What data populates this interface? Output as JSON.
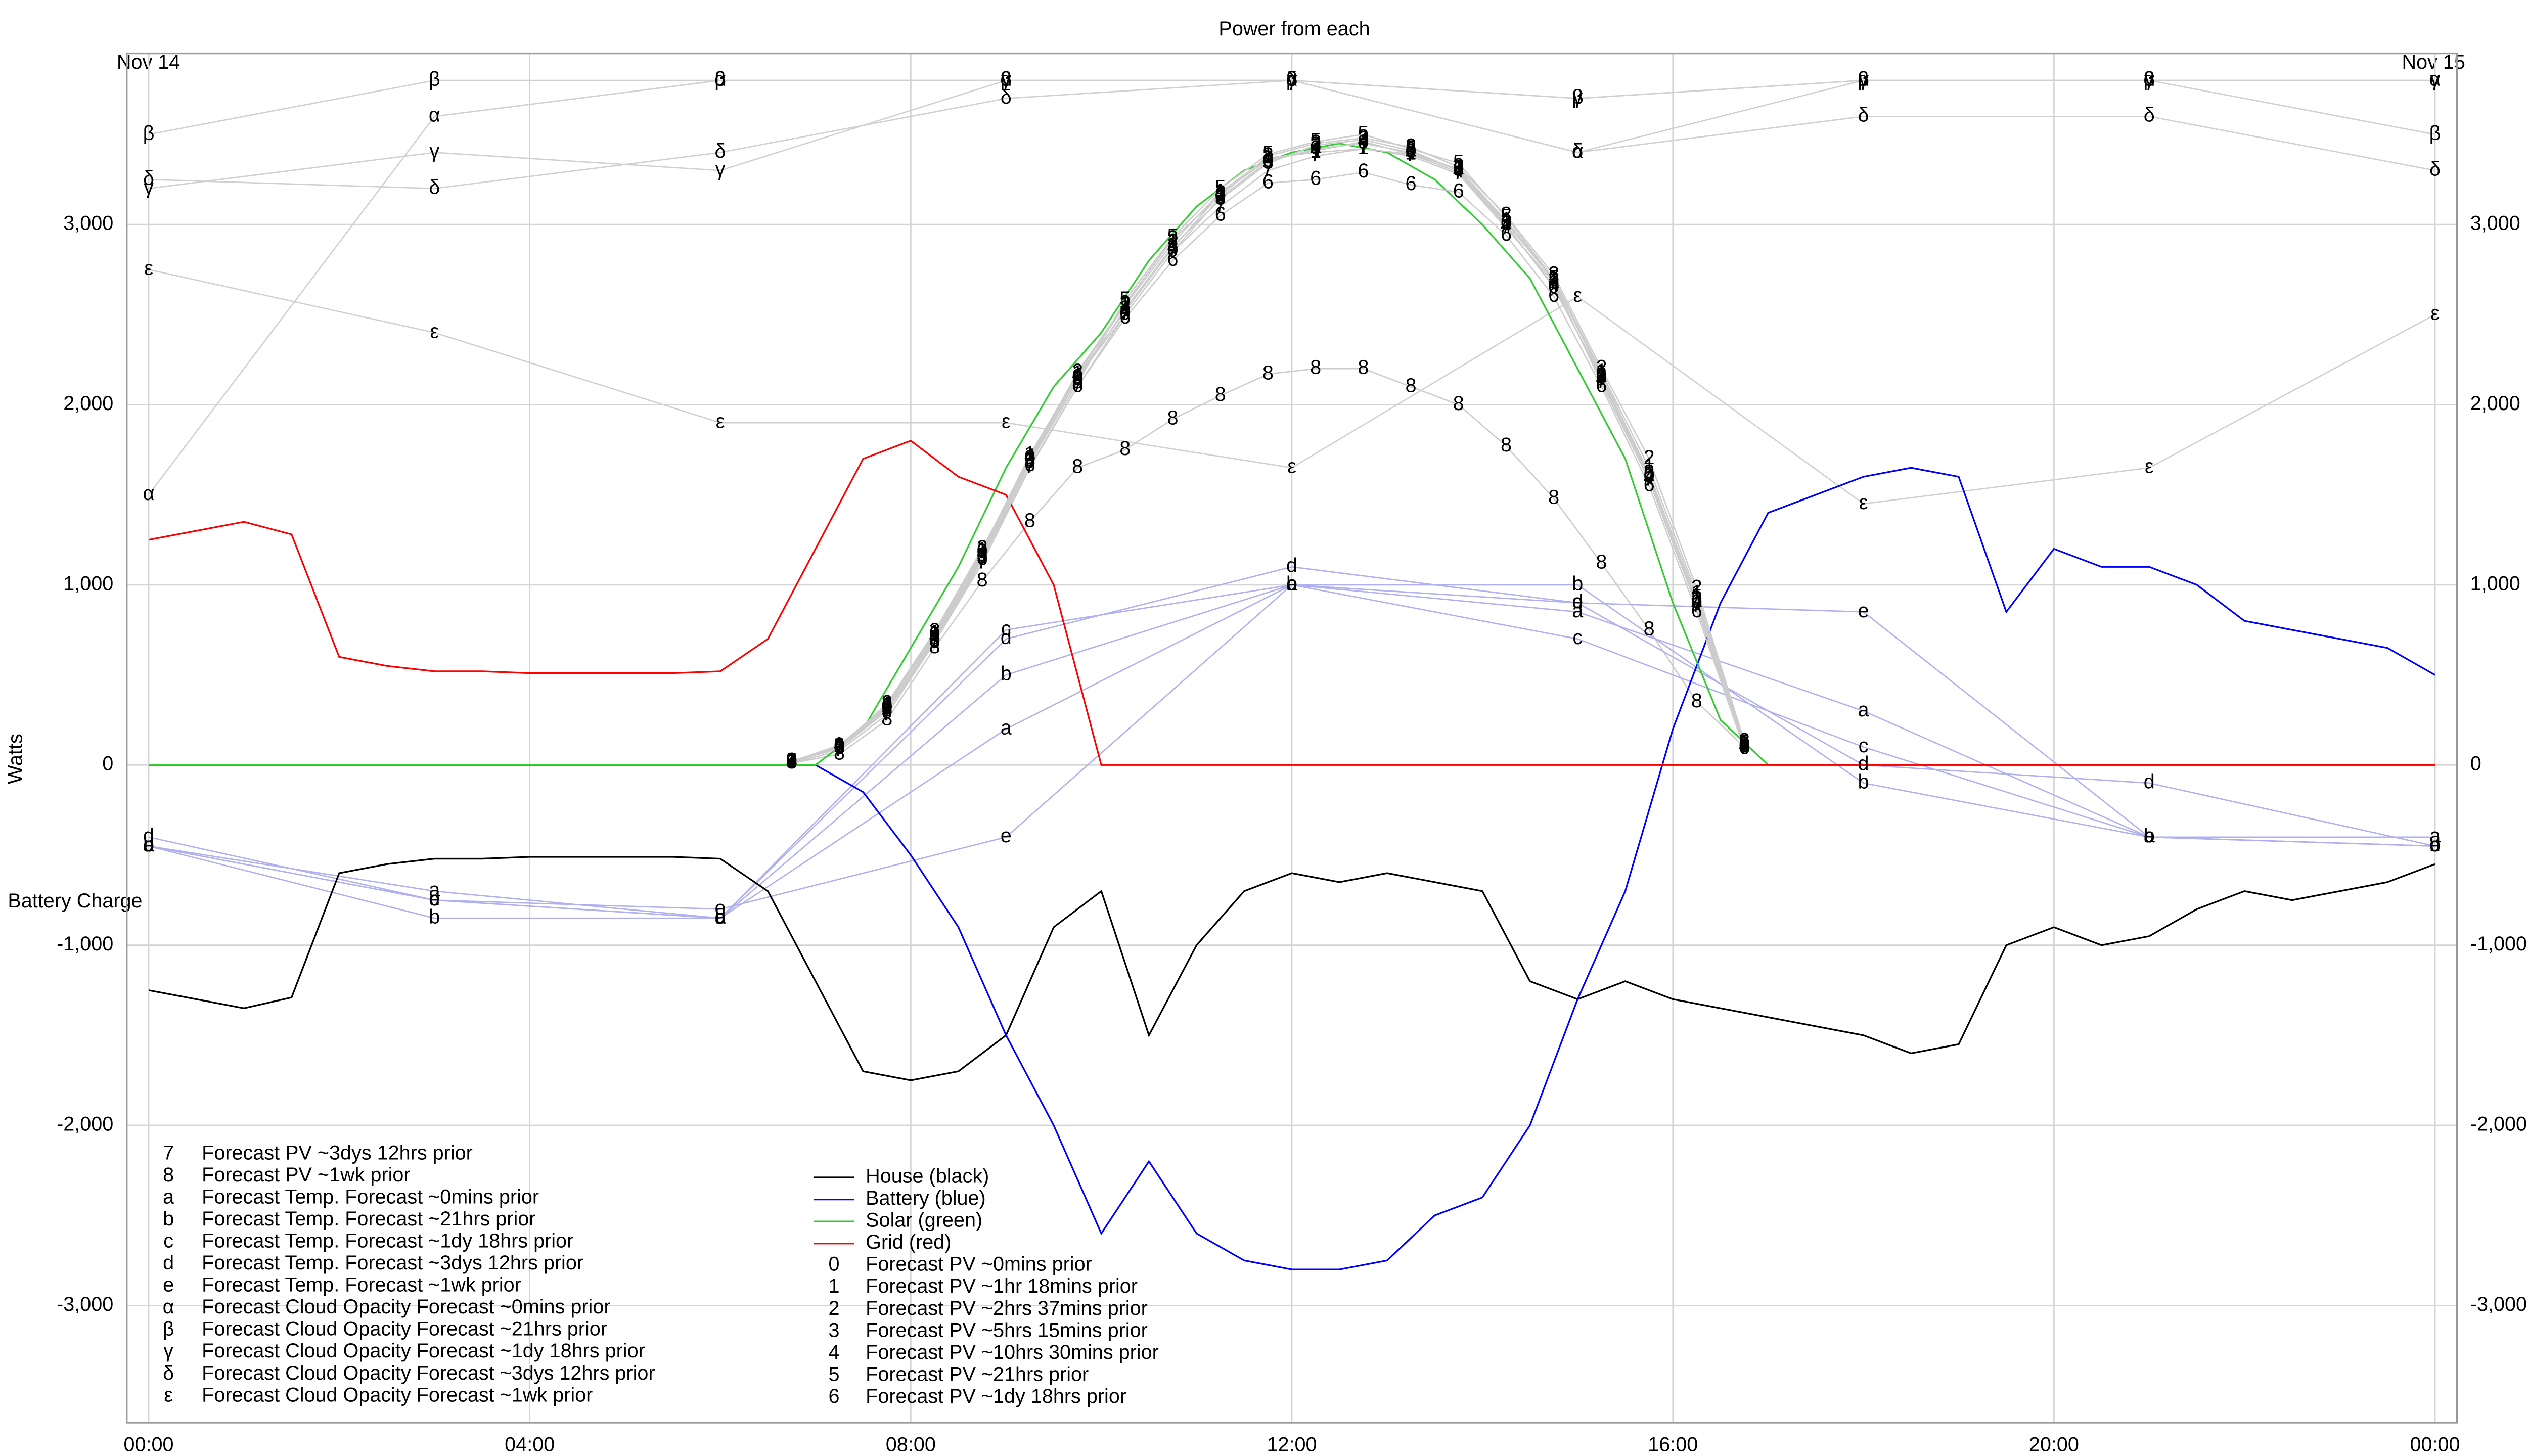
{
  "chart_data": {
    "type": "line",
    "title": "Power from each",
    "date_labels": [
      "Nov 14",
      "Nov 15"
    ],
    "y_label": "Watts",
    "y_label_secondary": "Battery Charge",
    "grid": true,
    "legend": "lower left",
    "xlim": [
      -0.23,
      24.23
    ],
    "xticks": [
      {
        "value": 0,
        "label": "00:00"
      },
      {
        "value": 4,
        "label": "04:00"
      },
      {
        "value": 8,
        "label": "08:00"
      },
      {
        "value": 12,
        "label": "12:00"
      },
      {
        "value": 16,
        "label": "16:00"
      },
      {
        "value": 20,
        "label": "20:00"
      },
      {
        "value": 24,
        "label": "00:00"
      }
    ],
    "ylim": [
      -3650,
      3950
    ],
    "yticks": [
      {
        "value": -3000,
        "label": "-3,000"
      },
      {
        "value": -2000,
        "label": "-2,000"
      },
      {
        "value": -1000,
        "label": "-1,000"
      },
      0,
      {
        "value": 1000,
        "label": "1,000"
      },
      {
        "value": 2000,
        "label": "2,000"
      },
      {
        "value": 3000,
        "label": "3,000"
      }
    ],
    "x": [
      0,
      0.5,
      1,
      1.5,
      2,
      2.5,
      3,
      3.5,
      4,
      4.5,
      5,
      5.5,
      6,
      6.5,
      7,
      7.5,
      8,
      8.5,
      9,
      9.5,
      10,
      10.5,
      11,
      11.5,
      12,
      12.5,
      13,
      13.5,
      14,
      14.5,
      15,
      15.5,
      16,
      16.5,
      17,
      17.5,
      18,
      18.5,
      19,
      19.5,
      20,
      20.5,
      21,
      21.5,
      22,
      22.5,
      23,
      23.5,
      24
    ],
    "series": [
      {
        "name": "Forecast PV ~3dys 12hrs prior",
        "marker": "7",
        "color": "#cccccc",
        "x": [
          6.75,
          7.25,
          7.75,
          8.25,
          8.75,
          9.25,
          9.75,
          10.25,
          10.75,
          11.25,
          11.75,
          12.25,
          12.75,
          13.25,
          13.75,
          14.25,
          14.75,
          15.25,
          15.75,
          16.25,
          16.75
        ],
        "values": [
          10,
          80,
          280,
          680,
          1120,
          1650,
          2100,
          2500,
          2850,
          3100,
          3300,
          3380,
          3420,
          3380,
          3280,
          2980,
          2680,
          2120,
          1580,
          880,
          90
        ]
      },
      {
        "name": "Forecast PV ~1wk prior",
        "marker": "8",
        "color": "#cccccc",
        "x": [
          6.75,
          7.25,
          7.75,
          8.25,
          8.75,
          9.25,
          9.75,
          10.25,
          10.75,
          11.25,
          11.75,
          12.25,
          12.75,
          13.25,
          13.75,
          14.25,
          14.75,
          15.25,
          15.75,
          16.25,
          16.75
        ],
        "values": [
          10,
          60,
          250,
          650,
          1020,
          1350,
          1650,
          1750,
          1920,
          2050,
          2170,
          2200,
          2200,
          2100,
          2000,
          1770,
          1480,
          1120,
          750,
          350,
          100
        ]
      },
      {
        "name": "Forecast Temp. Forecast ~0mins prior",
        "marker": "a",
        "color": "#b0b0f0",
        "x": [
          0,
          3,
          6,
          9,
          12,
          15,
          18,
          21,
          24
        ],
        "values": [
          -450,
          -700,
          -850,
          200,
          1000,
          850,
          300,
          -400,
          -400
        ]
      },
      {
        "name": "Forecast Temp. Forecast ~21hrs prior",
        "marker": "b",
        "color": "#b0b0f0",
        "x": [
          0,
          3,
          6,
          9,
          12,
          15,
          18,
          21,
          24
        ],
        "values": [
          -450,
          -850,
          -850,
          500,
          1000,
          1000,
          -100,
          -400,
          -450
        ]
      },
      {
        "name": "Forecast Temp. Forecast ~1dy 18hrs prior",
        "marker": "c",
        "color": "#b0b0f0",
        "x": [
          0,
          3,
          6,
          9,
          12,
          15,
          18,
          21,
          24
        ],
        "values": [
          -450,
          -750,
          -850,
          750,
          1000,
          700,
          100,
          -400,
          -450
        ]
      },
      {
        "name": "Forecast Temp. Forecast ~3dys 12hrs prior",
        "marker": "d",
        "color": "#b0b0f0",
        "x": [
          0,
          3,
          6,
          9,
          12,
          15,
          18,
          21,
          24
        ],
        "values": [
          -400,
          -750,
          -850,
          700,
          1100,
          900,
          0,
          -100,
          -450
        ]
      },
      {
        "name": "Forecast Temp. Forecast ~1wk prior",
        "marker": "e",
        "color": "#b0b0f0",
        "x": [
          0,
          3,
          6,
          9,
          12,
          15,
          18,
          21,
          24
        ],
        "values": [
          -450,
          -750,
          -800,
          -400,
          1000,
          900,
          850,
          -400,
          -450
        ]
      },
      {
        "name": "Forecast Cloud Opacity Forecast ~0mins prior",
        "marker": "α",
        "color": "#d0d0d0",
        "x": [
          0,
          3,
          6,
          9,
          12,
          15,
          18,
          21,
          24
        ],
        "values": [
          1500,
          3600,
          3800,
          3800,
          3800,
          3400,
          3800,
          3800,
          3800
        ]
      },
      {
        "name": "Forecast Cloud Opacity Forecast ~21hrs prior",
        "marker": "β",
        "color": "#d0d0d0",
        "x": [
          0,
          3,
          6,
          9,
          12,
          15,
          18,
          21,
          24
        ],
        "values": [
          3500,
          3800,
          3800,
          3800,
          3800,
          3700,
          3800,
          3800,
          3500
        ]
      },
      {
        "name": "Forecast Cloud Opacity Forecast ~1dy 18hrs prior",
        "marker": "γ",
        "color": "#d0d0d0",
        "x": [
          0,
          3,
          6,
          9,
          12,
          15,
          18,
          21,
          24
        ],
        "values": [
          3200,
          3400,
          3300,
          3800,
          3800,
          3700,
          3800,
          3800,
          3800
        ]
      },
      {
        "name": "Forecast Cloud Opacity Forecast ~3dys 12hrs prior",
        "marker": "δ",
        "color": "#d0d0d0",
        "x": [
          0,
          3,
          6,
          9,
          12,
          15,
          18,
          21,
          24
        ],
        "values": [
          3250,
          3200,
          3400,
          3700,
          3800,
          3400,
          3600,
          3600,
          3300
        ]
      },
      {
        "name": "Forecast Cloud Opacity Forecast ~1wk prior",
        "marker": "ε",
        "color": "#d0d0d0",
        "x": [
          0,
          3,
          6,
          9,
          12,
          15,
          18,
          21,
          24
        ],
        "values": [
          2750,
          2400,
          1900,
          1900,
          1650,
          2600,
          1450,
          1650,
          2500
        ]
      },
      {
        "name": "House (black)",
        "color": "#000000",
        "values": [
          -1250,
          -1300,
          -1350,
          -1290,
          -600,
          -550,
          -520,
          -520,
          -510,
          -510,
          -510,
          -510,
          -520,
          -700,
          -1200,
          -1700,
          -1750,
          -1700,
          -1500,
          -900,
          -700,
          -1500,
          -1000,
          -700,
          -600,
          -650,
          -600,
          -650,
          -700,
          -1200,
          -1300,
          -1200,
          -1300,
          -1350,
          -1400,
          -1450,
          -1500,
          -1600,
          -1550,
          -1000,
          -900,
          -1000,
          -950,
          -800,
          -700,
          -750,
          -700,
          -650,
          -550
        ]
      },
      {
        "name": "Battery (blue)",
        "color": "#0000ff",
        "values": [
          0,
          0,
          0,
          0,
          0,
          0,
          0,
          0,
          0,
          0,
          0,
          0,
          0,
          0,
          0,
          -150,
          -500,
          -900,
          -1500,
          -2000,
          -2600,
          -2200,
          -2600,
          -2750,
          -2800,
          -2800,
          -2750,
          -2500,
          -2400,
          -2000,
          -1300,
          -700,
          200,
          900,
          1400,
          1500,
          1600,
          1650,
          1600,
          850,
          1200,
          1100,
          1100,
          1000,
          800,
          750,
          700,
          650,
          500
        ]
      },
      {
        "name": "Solar (green)",
        "color": "#33cc33",
        "values": [
          0,
          0,
          0,
          0,
          0,
          0,
          0,
          0,
          0,
          0,
          0,
          0,
          0,
          0,
          0,
          200,
          650,
          1100,
          1650,
          2100,
          2400,
          2800,
          3100,
          3300,
          3400,
          3450,
          3400,
          3250,
          3000,
          2700,
          2200,
          1700,
          900,
          250,
          0,
          0,
          0,
          0,
          0,
          0,
          0,
          0,
          0,
          0,
          0,
          0,
          0,
          0,
          0
        ]
      },
      {
        "name": "Grid (red)",
        "color": "#ff0000",
        "values": [
          1250,
          1300,
          1350,
          1280,
          600,
          550,
          520,
          520,
          510,
          510,
          510,
          510,
          520,
          700,
          1200,
          1700,
          1800,
          1600,
          1500,
          1000,
          0,
          0,
          0,
          0,
          0,
          0,
          0,
          0,
          0,
          0,
          0,
          0,
          0,
          0,
          0,
          0,
          0,
          0,
          0,
          0,
          0,
          0,
          0,
          0,
          0,
          0,
          0,
          0,
          0
        ]
      },
      {
        "name": "Forecast PV ~0mins prior",
        "marker": "0",
        "color": "#cccccc",
        "x": [
          6.75,
          7.25,
          7.75,
          8.25,
          8.75,
          9.25,
          9.75,
          10.25,
          10.75,
          11.25,
          11.75,
          12.25,
          12.75,
          13.25,
          13.75,
          14.25,
          14.75,
          15.25,
          15.75,
          16.25,
          16.75
        ],
        "values": [
          20,
          100,
          320,
          720,
          1180,
          1700,
          2150,
          2500,
          2850,
          3150,
          3350,
          3420,
          3450,
          3400,
          3300,
          3000,
          2650,
          2150,
          1600,
          900,
          100
        ]
      },
      {
        "name": "Forecast PV ~1hr 18mins prior",
        "marker": "1",
        "color": "#cccccc",
        "x": [
          6.75,
          7.25,
          7.75,
          8.25,
          8.75,
          9.25,
          9.75,
          10.25,
          10.75,
          11.25,
          11.75,
          12.25,
          12.75,
          13.25,
          13.75,
          14.25,
          14.75,
          15.25,
          15.75,
          16.25,
          16.75
        ],
        "values": [
          20,
          110,
          330,
          730,
          1190,
          1720,
          2170,
          2550,
          2900,
          3180,
          3370,
          3400,
          3420,
          3390,
          3310,
          3020,
          2700,
          2180,
          1650,
          950,
          120
        ]
      },
      {
        "name": "Forecast PV ~2hrs 37mins prior",
        "marker": "2",
        "color": "#cccccc",
        "x": [
          6.75,
          7.25,
          7.75,
          8.25,
          8.75,
          9.25,
          9.75,
          10.25,
          10.75,
          11.25,
          11.75,
          12.25,
          12.75,
          13.25,
          13.75,
          14.25,
          14.75,
          15.25,
          15.75,
          16.25,
          16.75
        ],
        "values": [
          20,
          100,
          340,
          740,
          1200,
          1700,
          2180,
          2560,
          2920,
          3160,
          3380,
          3450,
          3480,
          3430,
          3320,
          3050,
          2720,
          2200,
          1700,
          980,
          130
        ]
      },
      {
        "name": "Forecast PV ~5hrs 15mins prior",
        "marker": "3",
        "color": "#cccccc",
        "x": [
          6.75,
          7.25,
          7.75,
          8.25,
          8.75,
          9.25,
          9.75,
          10.25,
          10.75,
          11.25,
          11.75,
          12.25,
          12.75,
          13.25,
          13.75,
          14.25,
          14.75,
          15.25,
          15.75,
          16.25,
          16.75
        ],
        "values": [
          15,
          95,
          310,
          700,
          1160,
          1690,
          2140,
          2530,
          2880,
          3140,
          3340,
          3440,
          3470,
          3410,
          3300,
          3010,
          2690,
          2160,
          1620,
          920,
          110
        ]
      },
      {
        "name": "Forecast PV ~10hrs 30mins prior",
        "marker": "4",
        "color": "#cccccc",
        "x": [
          6.75,
          7.25,
          7.75,
          8.25,
          8.75,
          9.25,
          9.75,
          10.25,
          10.75,
          11.25,
          11.75,
          12.25,
          12.75,
          13.25,
          13.75,
          14.25,
          14.75,
          15.25,
          15.75,
          16.25,
          16.75
        ],
        "values": [
          15,
          105,
          330,
          710,
          1170,
          1710,
          2160,
          2520,
          2870,
          3170,
          3360,
          3410,
          3460,
          3390,
          3290,
          2990,
          2660,
          2140,
          1590,
          890,
          100
        ]
      },
      {
        "name": "Forecast PV ~21hrs prior",
        "marker": "5",
        "color": "#cccccc",
        "x": [
          6.75,
          7.25,
          7.75,
          8.25,
          8.75,
          9.25,
          9.75,
          10.25,
          10.75,
          11.25,
          11.75,
          12.25,
          12.75,
          13.25,
          13.75,
          14.25,
          14.75,
          15.25,
          15.75,
          16.25,
          16.75
        ],
        "values": [
          20,
          100,
          300,
          690,
          1150,
          1680,
          2120,
          2580,
          2930,
          3200,
          3390,
          3460,
          3500,
          3420,
          3340,
          3040,
          2700,
          2170,
          1610,
          930,
          120
        ]
      },
      {
        "name": "Forecast PV ~1dy 18hrs prior",
        "marker": "6",
        "color": "#cccccc",
        "x": [
          6.75,
          7.25,
          7.75,
          8.25,
          8.75,
          9.25,
          9.75,
          10.25,
          10.75,
          11.25,
          11.75,
          12.25,
          12.75,
          13.25,
          13.75,
          14.25,
          14.75,
          15.25,
          15.75,
          16.25,
          16.75
        ],
        "values": [
          20,
          90,
          300,
          680,
          1140,
          1660,
          2100,
          2480,
          2800,
          3050,
          3230,
          3250,
          3290,
          3220,
          3180,
          2940,
          2600,
          2100,
          1550,
          850,
          90
        ]
      }
    ]
  }
}
